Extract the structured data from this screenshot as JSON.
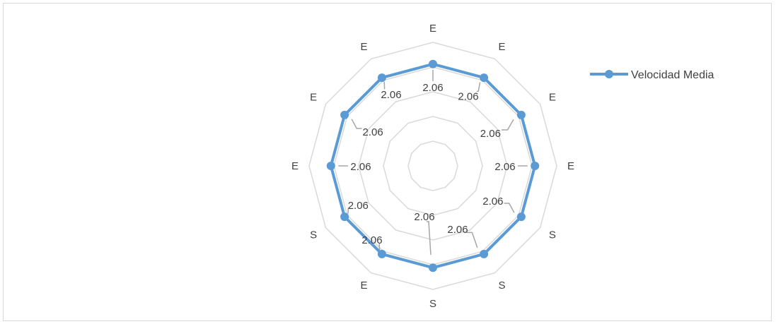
{
  "chart_data": {
    "type": "radar",
    "categories": [
      "E",
      "E",
      "E",
      "E",
      "S",
      "S",
      "S",
      "E",
      "S",
      "E",
      "E",
      "E"
    ],
    "series": [
      {
        "name": "Velocidad Media",
        "values": [
          2.06,
          2.06,
          2.06,
          2.06,
          2.06,
          2.06,
          2.06,
          2.06,
          2.06,
          2.06,
          2.06,
          2.06
        ],
        "data_labels": [
          "2.06",
          "2.06",
          "2.06",
          "2.06",
          "2.06",
          "2.06",
          "2.06",
          "2.06",
          "2.06",
          "2.06",
          "2.06",
          "2.06"
        ]
      }
    ],
    "rlim": [
      0,
      2.5
    ],
    "grid_levels": 5,
    "grid": true,
    "legend": "right",
    "colors": {
      "series": "#5b9bd5",
      "grid": "#d9d9d9",
      "text": "#404040",
      "leader": "#a6a6a6"
    }
  }
}
